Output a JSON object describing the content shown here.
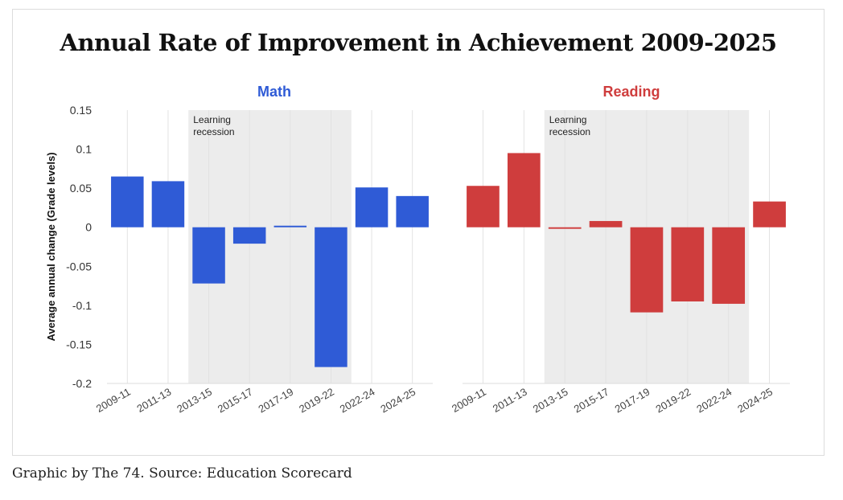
{
  "title": "Annual Rate of Improvement in Achievement 2009-2025",
  "caption": "Graphic by The 74. Source: Education Scorecard",
  "chart_data": [
    {
      "type": "bar",
      "title": "Math",
      "title_color": "#2f5bd6",
      "bar_color": "#2f5bd6",
      "ylabel": "Average annual change (Grade levels)",
      "ylim": [
        -0.2,
        0.15
      ],
      "yticks": [
        0.15,
        0.1,
        0.05,
        0,
        -0.05,
        -0.1,
        -0.15,
        -0.2
      ],
      "ytick_labels": [
        "0.15",
        "0.1",
        "0.05",
        "0",
        "-0.05",
        "-0.1",
        "-0.15",
        "-0.2"
      ],
      "grid": true,
      "categories": [
        "2009-11",
        "2011-13",
        "2013-15",
        "2015-17",
        "2017-19",
        "2019-22",
        "2022-24",
        "2024-25"
      ],
      "values": [
        0.065,
        0.059,
        -0.072,
        -0.021,
        0.002,
        -0.179,
        0.051,
        0.04
      ],
      "shaded_region": {
        "label_lines": [
          "Learning",
          "recession"
        ],
        "from_category": "2013-15",
        "to_category": "2019-22"
      }
    },
    {
      "type": "bar",
      "title": "Reading",
      "title_color": "#cf3d3d",
      "bar_color": "#cf3d3d",
      "ylim": [
        -0.2,
        0.15
      ],
      "grid": true,
      "categories": [
        "2009-11",
        "2011-13",
        "2013-15",
        "2015-17",
        "2017-19",
        "2019-22",
        "2022-24",
        "2024-25"
      ],
      "values": [
        0.053,
        0.095,
        -0.002,
        0.008,
        -0.109,
        -0.095,
        -0.098,
        0.033
      ],
      "shaded_region": {
        "label_lines": [
          "Learning",
          "recession"
        ],
        "from_category": "2013-15",
        "to_category": "2022-24"
      }
    }
  ]
}
